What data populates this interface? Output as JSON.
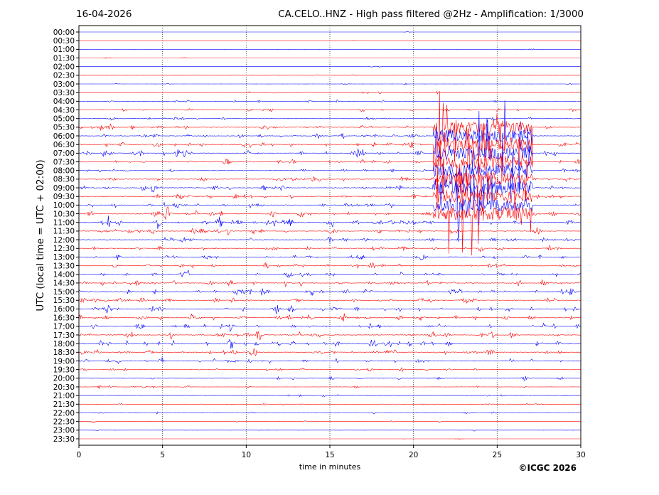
{
  "header": {
    "date": "16-04-2026",
    "title": "CA.CELO..HNZ - High pass filtered @2Hz - Amplification: 1/3000"
  },
  "footer": {
    "copyright": "©ICGC 2026"
  },
  "colors": {
    "trace_even": "#0000ff",
    "trace_odd": "#ff0000",
    "grid": "#333333"
  },
  "chart_data": {
    "type": "line",
    "title": "CA.CELO..HNZ - High pass filtered @2Hz - Amplification: 1/3000",
    "xlabel": "time in minutes",
    "ylabel": "UTC (local time = UTC + 02:00)",
    "xlim": [
      0,
      30
    ],
    "x_ticks": [
      0,
      5,
      10,
      15,
      20,
      25,
      30
    ],
    "x_grid": "dotted vertical lines at each tick",
    "trace_colors": [
      "red",
      "blue"
    ],
    "row_labels": [
      "00:00",
      "00:30",
      "01:00",
      "01:30",
      "02:00",
      "02:30",
      "03:00",
      "03:30",
      "04:00",
      "04:30",
      "05:00",
      "05:30",
      "06:00",
      "06:30",
      "07:00",
      "07:30",
      "08:00",
      "08:30",
      "09:00",
      "09:30",
      "10:00",
      "10:30",
      "11:00",
      "11:30",
      "12:00",
      "12:30",
      "13:00",
      "13:30",
      "14:00",
      "14:30",
      "15:00",
      "15:30",
      "16:00",
      "16:30",
      "17:00",
      "17:30",
      "18:00",
      "18:30",
      "19:00",
      "19:30",
      "20:00",
      "20:30",
      "21:00",
      "21:30",
      "22:00",
      "22:30",
      "23:00",
      "23:30"
    ],
    "noise_level_by_row": [
      0.02,
      0.03,
      0.03,
      0.04,
      0.04,
      0.05,
      0.1,
      0.22,
      0.22,
      0.35,
      0.35,
      0.55,
      0.55,
      0.7,
      0.7,
      0.55,
      0.5,
      0.7,
      0.65,
      0.7,
      0.65,
      0.75,
      0.8,
      0.6,
      0.55,
      0.6,
      0.55,
      0.6,
      0.6,
      0.65,
      0.7,
      0.65,
      0.7,
      0.7,
      0.7,
      0.7,
      0.75,
      0.7,
      0.6,
      0.35,
      0.3,
      0.25,
      0.2,
      0.2,
      0.15,
      0.12,
      0.08,
      0.05
    ],
    "events": [
      {
        "row": "11:00",
        "minute": 4.7,
        "amplitude": "large"
      },
      {
        "row": "11:00",
        "minute": 8.4,
        "amplitude": "large"
      },
      {
        "row": "10:30",
        "minute": 5.3,
        "amplitude": "large"
      },
      {
        "row": "16:00",
        "minute": 11.8,
        "amplitude": "medium"
      },
      {
        "row": "18:00",
        "minute": 17.6,
        "amplitude": "medium"
      },
      {
        "row": "11:30",
        "minute": 27.4,
        "amplitude": "medium"
      }
    ],
    "burst": {
      "rows_from": "05:30",
      "rows_to": "10:30",
      "minutes_from": 21.2,
      "minutes_to": 27.1,
      "type": "high-amplitude spikes"
    }
  }
}
